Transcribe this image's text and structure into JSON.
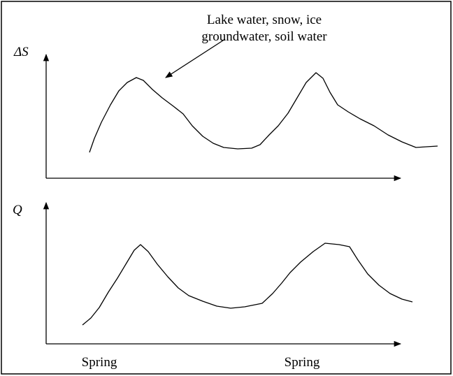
{
  "annotation": [
    "Lake water, snow, ice",
    "groundwater, soil water"
  ],
  "top_panel": {
    "y_label": "ΔS"
  },
  "bottom_panel": {
    "y_label": "Q"
  },
  "x_labels": [
    "Spring",
    "Spring"
  ]
}
